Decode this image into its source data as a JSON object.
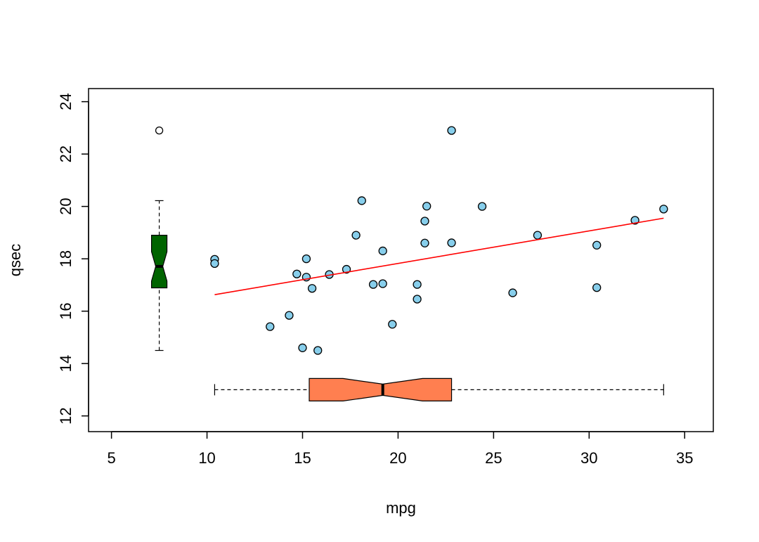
{
  "chart_data": {
    "type": "scatter",
    "title": "",
    "xlabel": "mpg",
    "ylabel": "qsec",
    "xlim": [
      3.8,
      36.5
    ],
    "ylim": [
      11.4,
      24.5
    ],
    "x_ticks": [
      5,
      10,
      15,
      20,
      25,
      30,
      35
    ],
    "y_ticks": [
      12,
      14,
      16,
      18,
      20,
      22,
      24
    ],
    "x_tick_labels": [
      "5",
      "10",
      "15",
      "20",
      "25",
      "30",
      "35"
    ],
    "y_tick_labels": [
      "12",
      "14",
      "16",
      "18",
      "20",
      "22",
      "24"
    ],
    "grid": false,
    "points": {
      "color": "#87CEEB",
      "x": [
        21.0,
        21.0,
        22.8,
        21.4,
        18.7,
        18.1,
        14.3,
        24.4,
        22.8,
        19.2,
        17.8,
        16.4,
        17.3,
        15.2,
        10.4,
        10.4,
        14.7,
        32.4,
        30.4,
        33.9,
        21.5,
        15.5,
        15.2,
        13.3,
        19.2,
        27.3,
        26.0,
        30.4,
        15.8,
        19.7,
        15.0,
        21.4
      ],
      "y": [
        16.46,
        17.02,
        18.61,
        19.44,
        17.02,
        20.22,
        15.84,
        20.0,
        22.9,
        18.3,
        18.9,
        17.4,
        17.6,
        18.0,
        17.98,
        17.82,
        17.42,
        19.47,
        18.52,
        19.9,
        20.01,
        16.87,
        17.3,
        15.41,
        17.05,
        18.9,
        16.7,
        16.9,
        14.5,
        15.5,
        14.6,
        18.6
      ]
    },
    "regression_line": {
      "color": "#FF0000",
      "x": [
        10.4,
        33.9
      ],
      "y": [
        16.63,
        19.55
      ]
    },
    "x_boxplot": {
      "color": "#FF7F50",
      "notch": true,
      "whisker_low": 10.4,
      "q1": 15.35,
      "median": 19.2,
      "q3": 22.8,
      "whisker_high": 33.9,
      "notch_low": 17.12,
      "notch_high": 21.28,
      "position_y": 13.0
    },
    "y_boxplot": {
      "color": "#006400",
      "notch": true,
      "whisker_low": 14.5,
      "q1": 16.89,
      "median": 17.71,
      "q3": 18.9,
      "whisker_high": 20.22,
      "notch_low": 17.15,
      "notch_high": 18.27,
      "outliers": [
        22.9
      ],
      "position_x": 7.5
    }
  }
}
